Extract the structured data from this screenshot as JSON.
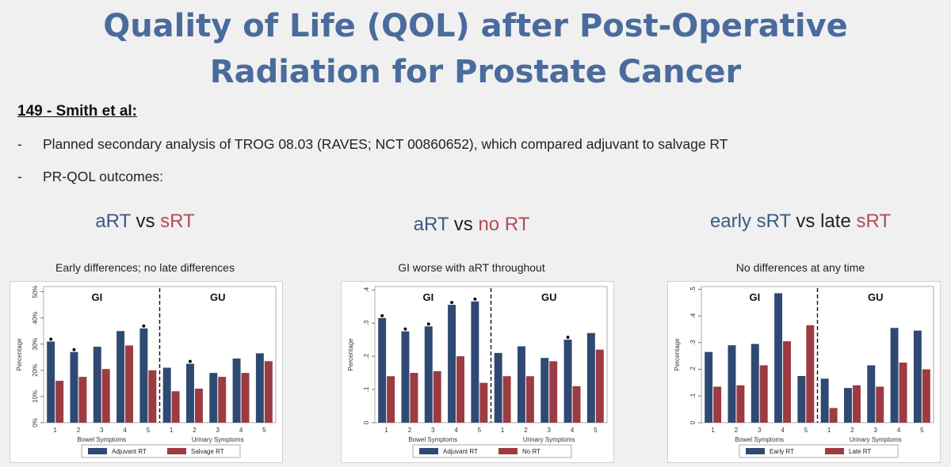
{
  "slide": {
    "title_line1": "Quality of Life (QOL) after Post-Operative",
    "title_line2": "Radiation for Prostate Cancer",
    "study": "149 - Smith et al:",
    "bullets": [
      "Planned secondary analysis of TROG 08.03 (RAVES; NCT 00860652), which compared adjuvant to salvage RT",
      "PR-QOL outcomes:"
    ],
    "bullet_marker": "-"
  },
  "panels": [
    {
      "head": [
        "aRT",
        " vs ",
        "sRT"
      ],
      "subtitle": "Early differences; no late differences"
    },
    {
      "head": [
        "aRT",
        " vs ",
        "no RT"
      ],
      "subtitle": "GI worse with aRT throughout"
    },
    {
      "head": [
        "early sRT",
        " vs late ",
        "sRT"
      ],
      "subtitle": "No differences at any time"
    }
  ],
  "colors": {
    "blue": "#2e4a73",
    "red": "#9c3b42",
    "title": "#4a6b9d",
    "study_blue": "#3b5a85",
    "study_red": "#b54a5a"
  },
  "chart_data": [
    {
      "type": "bar",
      "ylabel": "Percentage",
      "yticks": [
        0,
        0.1,
        0.2,
        0.3,
        0.4,
        0.5
      ],
      "ytick_labels": [
        "0%",
        "10%",
        "20%",
        "30%",
        "40%",
        "50%"
      ],
      "ylim": [
        0,
        0.52
      ],
      "groups": [
        "GI",
        "GU"
      ],
      "xlabels": [
        "Bowel Symptoms",
        "Urinary Symptoms"
      ],
      "categories": [
        "1",
        "2",
        "3",
        "4",
        "5",
        "1",
        "2",
        "3",
        "4",
        "5"
      ],
      "series": [
        {
          "name": "Adjuvant RT",
          "values": [
            0.31,
            0.27,
            0.29,
            0.35,
            0.36,
            0.21,
            0.225,
            0.19,
            0.245,
            0.265
          ]
        },
        {
          "name": "Salvage RT",
          "values": [
            0.16,
            0.175,
            0.205,
            0.295,
            0.2,
            0.12,
            0.13,
            0.175,
            0.19,
            0.235
          ]
        }
      ],
      "significant": [
        0,
        1,
        4,
        6
      ],
      "legend_position": "bottom"
    },
    {
      "type": "bar",
      "ylabel": "Percentage",
      "yticks": [
        0,
        0.1,
        0.2,
        0.3,
        0.4
      ],
      "ytick_labels": [
        "0",
        ".1",
        ".2",
        ".3",
        ".4"
      ],
      "ylim": [
        0,
        0.41
      ],
      "groups": [
        "GI",
        "GU"
      ],
      "xlabels": [
        "Bowel Symptoms",
        "Urinary Symptoms"
      ],
      "categories": [
        "1",
        "2",
        "3",
        "4",
        "5",
        "1",
        "2",
        "3",
        "4",
        "5"
      ],
      "series": [
        {
          "name": "Adjuvant RT",
          "values": [
            0.315,
            0.275,
            0.29,
            0.355,
            0.365,
            0.21,
            0.23,
            0.195,
            0.25,
            0.27
          ]
        },
        {
          "name": "No RT",
          "values": [
            0.14,
            0.15,
            0.155,
            0.2,
            0.12,
            0.14,
            0.14,
            0.185,
            0.11,
            0.22
          ]
        }
      ],
      "significant": [
        0,
        1,
        2,
        3,
        4,
        8
      ],
      "legend_position": "bottom"
    },
    {
      "type": "bar",
      "ylabel": "Percentage",
      "yticks": [
        0,
        0.1,
        0.2,
        0.3,
        0.4,
        0.5
      ],
      "ytick_labels": [
        "0",
        ".1",
        ".2",
        ".3",
        ".4",
        ".5"
      ],
      "ylim": [
        0,
        0.51
      ],
      "groups": [
        "GI",
        "GU"
      ],
      "xlabels": [
        "Bowel Symptoms",
        "Urinary Symptoms"
      ],
      "categories": [
        "1",
        "2",
        "3",
        "4",
        "5",
        "1",
        "2",
        "3",
        "4",
        "5"
      ],
      "series": [
        {
          "name": "Early RT",
          "values": [
            0.265,
            0.29,
            0.295,
            0.485,
            0.175,
            0.165,
            0.13,
            0.215,
            0.355,
            0.345
          ]
        },
        {
          "name": "Late RT",
          "values": [
            0.135,
            0.14,
            0.215,
            0.305,
            0.365,
            0.055,
            0.14,
            0.135,
            0.225,
            0.2
          ]
        }
      ],
      "significant": [],
      "legend_position": "bottom"
    }
  ]
}
